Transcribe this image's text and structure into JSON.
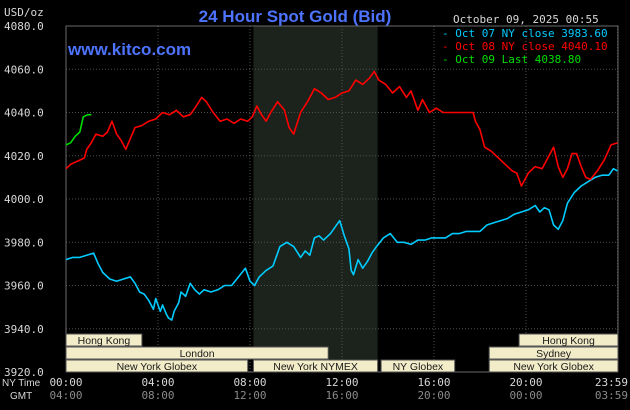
{
  "chart_data": {
    "type": "line",
    "title": "24 Hour Spot Gold (Bid)",
    "website": "www.kitco.com",
    "date_label": "October 09, 2025 00:55",
    "ylabel": "USD/oz",
    "ylim": [
      3920,
      4080
    ],
    "yticks": [
      3920,
      3940,
      3960,
      3980,
      4000,
      4020,
      4040,
      4060,
      4080
    ],
    "ytick_labels": [
      "3920.0",
      "3940.0",
      "3960.0",
      "3980.0",
      "4000.0",
      "4020.0",
      "4040.0",
      "4060.0",
      "4080.0"
    ],
    "xlim_hours": [
      0,
      24
    ],
    "x_row_labels": {
      "ny": "NY Time",
      "gmt": "GMT"
    },
    "x_ticks_ny": [
      "00:00",
      "04:00",
      "08:00",
      "12:00",
      "16:00",
      "20:00",
      "23:59"
    ],
    "x_ticks_gmt": [
      "04:00",
      "08:00",
      "12:00",
      "16:00",
      "20:00",
      "00:00",
      "03:59"
    ],
    "series": [
      {
        "name": "Oct 07 NY close 3983.60",
        "color": "#00ccff",
        "points": [
          [
            0.0,
            3972
          ],
          [
            0.3,
            3973
          ],
          [
            0.6,
            3973
          ],
          [
            0.9,
            3974
          ],
          [
            1.2,
            3975
          ],
          [
            1.4,
            3970
          ],
          [
            1.6,
            3966
          ],
          [
            1.9,
            3963
          ],
          [
            2.2,
            3962
          ],
          [
            2.5,
            3963
          ],
          [
            2.8,
            3964
          ],
          [
            3.0,
            3961
          ],
          [
            3.2,
            3957
          ],
          [
            3.4,
            3956
          ],
          [
            3.6,
            3953
          ],
          [
            3.8,
            3949
          ],
          [
            3.9,
            3954
          ],
          [
            4.0,
            3951
          ],
          [
            4.1,
            3948
          ],
          [
            4.2,
            3951
          ],
          [
            4.35,
            3947
          ],
          [
            4.45,
            3945
          ],
          [
            4.6,
            3944
          ],
          [
            4.7,
            3948
          ],
          [
            4.9,
            3952
          ],
          [
            5.0,
            3957
          ],
          [
            5.2,
            3955
          ],
          [
            5.4,
            3961
          ],
          [
            5.6,
            3958
          ],
          [
            5.8,
            3956
          ],
          [
            6.0,
            3958
          ],
          [
            6.3,
            3957
          ],
          [
            6.6,
            3958
          ],
          [
            6.9,
            3960
          ],
          [
            7.2,
            3960
          ],
          [
            7.5,
            3964
          ],
          [
            7.8,
            3968
          ],
          [
            8.0,
            3962
          ],
          [
            8.2,
            3960
          ],
          [
            8.4,
            3964
          ],
          [
            8.7,
            3967
          ],
          [
            9.0,
            3969
          ],
          [
            9.3,
            3978
          ],
          [
            9.6,
            3980
          ],
          [
            9.9,
            3978
          ],
          [
            10.2,
            3973
          ],
          [
            10.4,
            3976
          ],
          [
            10.6,
            3974
          ],
          [
            10.8,
            3982
          ],
          [
            11.0,
            3983
          ],
          [
            11.2,
            3981
          ],
          [
            11.5,
            3984
          ],
          [
            11.7,
            3987
          ],
          [
            11.9,
            3990
          ],
          [
            12.1,
            3983
          ],
          [
            12.3,
            3977
          ],
          [
            12.4,
            3967
          ],
          [
            12.5,
            3965
          ],
          [
            12.7,
            3972
          ],
          [
            12.9,
            3968
          ],
          [
            13.1,
            3971
          ],
          [
            13.3,
            3975
          ],
          [
            13.5,
            3978
          ],
          [
            13.8,
            3982
          ],
          [
            14.1,
            3984
          ],
          [
            14.4,
            3980
          ],
          [
            14.7,
            3980
          ],
          [
            15.0,
            3979
          ],
          [
            15.3,
            3981
          ],
          [
            15.6,
            3981
          ],
          [
            15.9,
            3982
          ],
          [
            16.2,
            3982
          ],
          [
            16.5,
            3982
          ],
          [
            16.8,
            3984
          ],
          [
            17.1,
            3984
          ],
          [
            17.4,
            3985
          ],
          [
            17.7,
            3985
          ],
          [
            18.0,
            3985
          ],
          [
            18.3,
            3988
          ],
          [
            18.6,
            3989
          ],
          [
            18.9,
            3990
          ],
          [
            19.2,
            3991
          ],
          [
            19.5,
            3993
          ],
          [
            19.8,
            3994
          ],
          [
            20.1,
            3995
          ],
          [
            20.4,
            3997
          ],
          [
            20.6,
            3994
          ],
          [
            20.8,
            3996
          ],
          [
            21.0,
            3995
          ],
          [
            21.2,
            3988
          ],
          [
            21.4,
            3986
          ],
          [
            21.6,
            3990
          ],
          [
            21.8,
            3998
          ],
          [
            22.1,
            4003
          ],
          [
            22.4,
            4006
          ],
          [
            22.7,
            4008
          ],
          [
            23.0,
            4010
          ],
          [
            23.3,
            4011
          ],
          [
            23.6,
            4011
          ],
          [
            23.8,
            4014
          ],
          [
            23.98,
            4013
          ]
        ]
      },
      {
        "name": "Oct 08 NY close 4040.10",
        "color": "#ff0000",
        "points": [
          [
            0.0,
            4014
          ],
          [
            0.2,
            4016
          ],
          [
            0.4,
            4017
          ],
          [
            0.6,
            4018
          ],
          [
            0.8,
            4019
          ],
          [
            0.9,
            4023
          ],
          [
            1.1,
            4026
          ],
          [
            1.3,
            4030
          ],
          [
            1.6,
            4029
          ],
          [
            1.8,
            4031
          ],
          [
            2.0,
            4036
          ],
          [
            2.2,
            4030
          ],
          [
            2.4,
            4027
          ],
          [
            2.6,
            4023
          ],
          [
            2.8,
            4028
          ],
          [
            3.0,
            4033
          ],
          [
            3.3,
            4034
          ],
          [
            3.6,
            4036
          ],
          [
            3.9,
            4037
          ],
          [
            4.2,
            4040
          ],
          [
            4.5,
            4039
          ],
          [
            4.8,
            4041
          ],
          [
            5.1,
            4038
          ],
          [
            5.4,
            4039
          ],
          [
            5.6,
            4042
          ],
          [
            5.9,
            4047
          ],
          [
            6.1,
            4045
          ],
          [
            6.4,
            4040
          ],
          [
            6.7,
            4036
          ],
          [
            7.0,
            4037
          ],
          [
            7.3,
            4035
          ],
          [
            7.6,
            4037
          ],
          [
            7.9,
            4036
          ],
          [
            8.1,
            4038
          ],
          [
            8.3,
            4043
          ],
          [
            8.5,
            4039
          ],
          [
            8.7,
            4036
          ],
          [
            8.9,
            4040
          ],
          [
            9.2,
            4045
          ],
          [
            9.5,
            4041
          ],
          [
            9.7,
            4033
          ],
          [
            9.9,
            4030
          ],
          [
            10.2,
            4040
          ],
          [
            10.5,
            4045
          ],
          [
            10.8,
            4051
          ],
          [
            11.1,
            4049
          ],
          [
            11.4,
            4046
          ],
          [
            11.7,
            4047
          ],
          [
            12.0,
            4049
          ],
          [
            12.3,
            4050
          ],
          [
            12.6,
            4055
          ],
          [
            12.9,
            4053
          ],
          [
            13.2,
            4056
          ],
          [
            13.4,
            4059
          ],
          [
            13.6,
            4055
          ],
          [
            13.9,
            4053
          ],
          [
            14.2,
            4049
          ],
          [
            14.5,
            4052
          ],
          [
            14.8,
            4047
          ],
          [
            15.0,
            4050
          ],
          [
            15.3,
            4041
          ],
          [
            15.5,
            4046
          ],
          [
            15.8,
            4040
          ],
          [
            16.1,
            4042
          ],
          [
            16.4,
            4040
          ],
          [
            16.7,
            4040
          ],
          [
            17.0,
            4040
          ],
          [
            17.4,
            4040
          ],
          [
            17.7,
            4040
          ],
          [
            17.8,
            4036
          ],
          [
            18.0,
            4032
          ],
          [
            18.2,
            4024
          ],
          [
            18.5,
            4022
          ],
          [
            18.8,
            4019
          ],
          [
            19.1,
            4016
          ],
          [
            19.4,
            4013
          ],
          [
            19.6,
            4012
          ],
          [
            19.8,
            4006
          ],
          [
            20.1,
            4012
          ],
          [
            20.4,
            4015
          ],
          [
            20.7,
            4014
          ],
          [
            21.0,
            4020
          ],
          [
            21.2,
            4024
          ],
          [
            21.4,
            4015
          ],
          [
            21.6,
            4010
          ],
          [
            21.8,
            4014
          ],
          [
            22.0,
            4021
          ],
          [
            22.2,
            4021
          ],
          [
            22.4,
            4015
          ],
          [
            22.6,
            4010
          ],
          [
            22.8,
            4009
          ],
          [
            23.1,
            4013
          ],
          [
            23.4,
            4018
          ],
          [
            23.7,
            4025
          ],
          [
            23.98,
            4026
          ]
        ]
      },
      {
        "name": "Oct 09 Last 4038.80",
        "color": "#00dd00",
        "points": [
          [
            0.0,
            4025
          ],
          [
            0.2,
            4026
          ],
          [
            0.4,
            4029
          ],
          [
            0.6,
            4031
          ],
          [
            0.75,
            4038
          ],
          [
            0.95,
            4039
          ],
          [
            1.1,
            4039
          ]
        ]
      }
    ],
    "sessions": [
      {
        "label": "Hong Kong",
        "row": 0,
        "start": 0.0,
        "end": 3.3
      },
      {
        "label": "Hong Kong",
        "row": 0,
        "start": 19.7,
        "end": 24.0
      },
      {
        "label": "London",
        "row": 1,
        "start": 0.0,
        "end": 11.4
      },
      {
        "label": "Sydney",
        "row": 1,
        "start": 18.4,
        "end": 24.0
      },
      {
        "label": "New York Globex",
        "row": 2,
        "start": 0.0,
        "end": 7.9
      },
      {
        "label": "New York NYMEX",
        "row": 2,
        "start": 8.15,
        "end": 13.55
      },
      {
        "label": "NY Globex",
        "row": 2,
        "start": 13.7,
        "end": 16.9
      },
      {
        "label": "New York Globex",
        "row": 2,
        "start": 18.4,
        "end": 24.0
      }
    ],
    "nymex_shade": [
      8.15,
      13.55
    ],
    "grid": true
  },
  "colors": {
    "background": "#000000",
    "grid": "#505050",
    "title": "#4d73ff",
    "website": "#4d73ff",
    "date": "#d8d8d8",
    "axis_text": "#d8d8d8",
    "session_fill": "#f2ecc8",
    "nymex_shade": "#1c221c"
  }
}
